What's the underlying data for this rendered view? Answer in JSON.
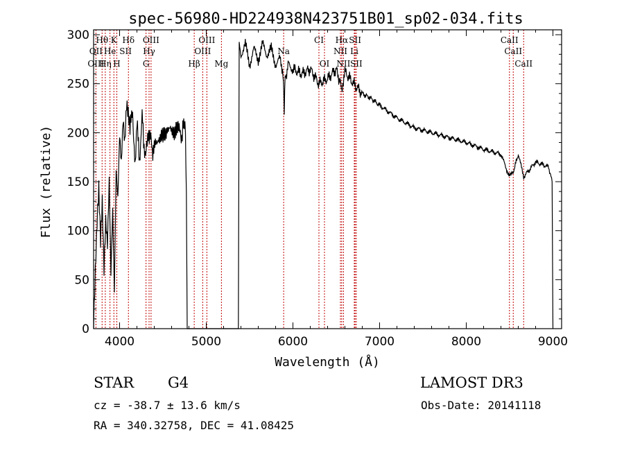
{
  "chart_data": {
    "type": "line",
    "title": "spec-56980-HD224938N423751B01_sp02-034.fits",
    "xlabel": "Wavelength (Å)",
    "ylabel": "Flux (relative)",
    "xlim": [
      3700,
      9100
    ],
    "ylim": [
      0,
      305
    ],
    "x_ticks": [
      4000,
      5000,
      6000,
      7000,
      8000,
      9000
    ],
    "y_ticks": [
      0,
      50,
      100,
      150,
      200,
      250,
      300
    ],
    "series": [
      {
        "name": "spectrum",
        "x": [
          3700,
          3720,
          3740,
          3760,
          3780,
          3800,
          3820,
          3840,
          3860,
          3880,
          3900,
          3920,
          3940,
          3960,
          3980,
          4000,
          4020,
          4040,
          4060,
          4080,
          4100,
          4120,
          4150,
          4180,
          4200,
          4230,
          4260,
          4300,
          4330,
          4360,
          4400,
          4450,
          4500,
          4550,
          4600,
          4650,
          4700,
          4740,
          4760,
          4770,
          4780,
          5370,
          5380,
          5400,
          5450,
          5500,
          5550,
          5600,
          5650,
          5700,
          5750,
          5800,
          5850,
          5880,
          5890,
          5900,
          5910,
          5950,
          6000,
          6100,
          6200,
          6300,
          6400,
          6500,
          6563,
          6600,
          6700,
          6800,
          6900,
          7000,
          7200,
          7400,
          7600,
          7800,
          8000,
          8200,
          8400,
          8498,
          8542,
          8600,
          8662,
          8800,
          8950,
          8990,
          9000
        ],
        "y": [
          5,
          60,
          110,
          145,
          90,
          130,
          60,
          110,
          85,
          150,
          55,
          120,
          35,
          160,
          130,
          195,
          165,
          210,
          185,
          225,
          215,
          200,
          225,
          160,
          205,
          175,
          215,
          170,
          205,
          190,
          180,
          200,
          190,
          210,
          195,
          210,
          195,
          205,
          200,
          140,
          0,
          0,
          295,
          280,
          290,
          270,
          285,
          275,
          290,
          280,
          285,
          270,
          275,
          265,
          250,
          225,
          255,
          270,
          265,
          260,
          265,
          250,
          255,
          265,
          245,
          262,
          250,
          240,
          235,
          228,
          215,
          205,
          200,
          195,
          190,
          183,
          178,
          155,
          160,
          178,
          155,
          170,
          165,
          150,
          0
        ]
      }
    ],
    "line_labels": [
      {
        "text": "Hθ",
        "wavelength": 3798,
        "row": 1
      },
      {
        "text": "K",
        "wavelength": 3934,
        "row": 1
      },
      {
        "text": "Hδ",
        "wavelength": 4102,
        "row": 1
      },
      {
        "text": "OIII",
        "wavelength": 4363,
        "row": 1
      },
      {
        "text": "OIII",
        "wavelength": 5007,
        "row": 1
      },
      {
        "text": "CI",
        "wavelength": 6300,
        "row": 1
      },
      {
        "text": "Hα",
        "wavelength": 6563,
        "row": 1
      },
      {
        "text": "SII",
        "wavelength": 6717,
        "row": 1
      },
      {
        "text": "CaII",
        "wavelength": 8498,
        "row": 1
      },
      {
        "text": "OII",
        "wavelength": 3727,
        "row": 2
      },
      {
        "text": "He",
        "wavelength": 3889,
        "row": 2
      },
      {
        "text": "SII",
        "wavelength": 4069,
        "row": 2
      },
      {
        "text": "Hγ",
        "wavelength": 4340,
        "row": 2
      },
      {
        "text": "OIII",
        "wavelength": 4959,
        "row": 2
      },
      {
        "text": "Na",
        "wavelength": 5893,
        "row": 2
      },
      {
        "text": "NII",
        "wavelength": 6548,
        "row": 2
      },
      {
        "text": "Li",
        "wavelength": 6708,
        "row": 2
      },
      {
        "text": "CaII",
        "wavelength": 8542,
        "row": 2
      },
      {
        "text": "OIII",
        "wavelength": 3727,
        "row": 3
      },
      {
        "text": "Hη",
        "wavelength": 3835,
        "row": 3
      },
      {
        "text": "H",
        "wavelength": 3968,
        "row": 3
      },
      {
        "text": "G",
        "wavelength": 4305,
        "row": 3
      },
      {
        "text": "Hβ",
        "wavelength": 4861,
        "row": 3
      },
      {
        "text": "Mg",
        "wavelength": 5175,
        "row": 3
      },
      {
        "text": "OI",
        "wavelength": 6364,
        "row": 3
      },
      {
        "text": "NII",
        "wavelength": 6583,
        "row": 3
      },
      {
        "text": "SII",
        "wavelength": 6731,
        "row": 3
      },
      {
        "text": "CaII",
        "wavelength": 8662,
        "row": 3
      }
    ],
    "line_markers": [
      3727,
      3798,
      3835,
      3889,
      3934,
      3968,
      4102,
      4305,
      4340,
      4363,
      4861,
      4959,
      5007,
      5175,
      5893,
      6300,
      6364,
      6548,
      6563,
      6583,
      6708,
      6717,
      6731,
      8498,
      8542,
      8662
    ]
  },
  "info": {
    "class_label": "STAR",
    "subclass": "G4",
    "survey": "LAMOST DR3",
    "cz": "cz = -38.7 ± 13.6 km/s",
    "obs_date": "Obs-Date: 20141118",
    "coords": "RA = 340.32758, DEC =  41.08425"
  },
  "colors": {
    "line_marker": "#c00000",
    "spectrum": "#000000",
    "axes": "#000000"
  }
}
